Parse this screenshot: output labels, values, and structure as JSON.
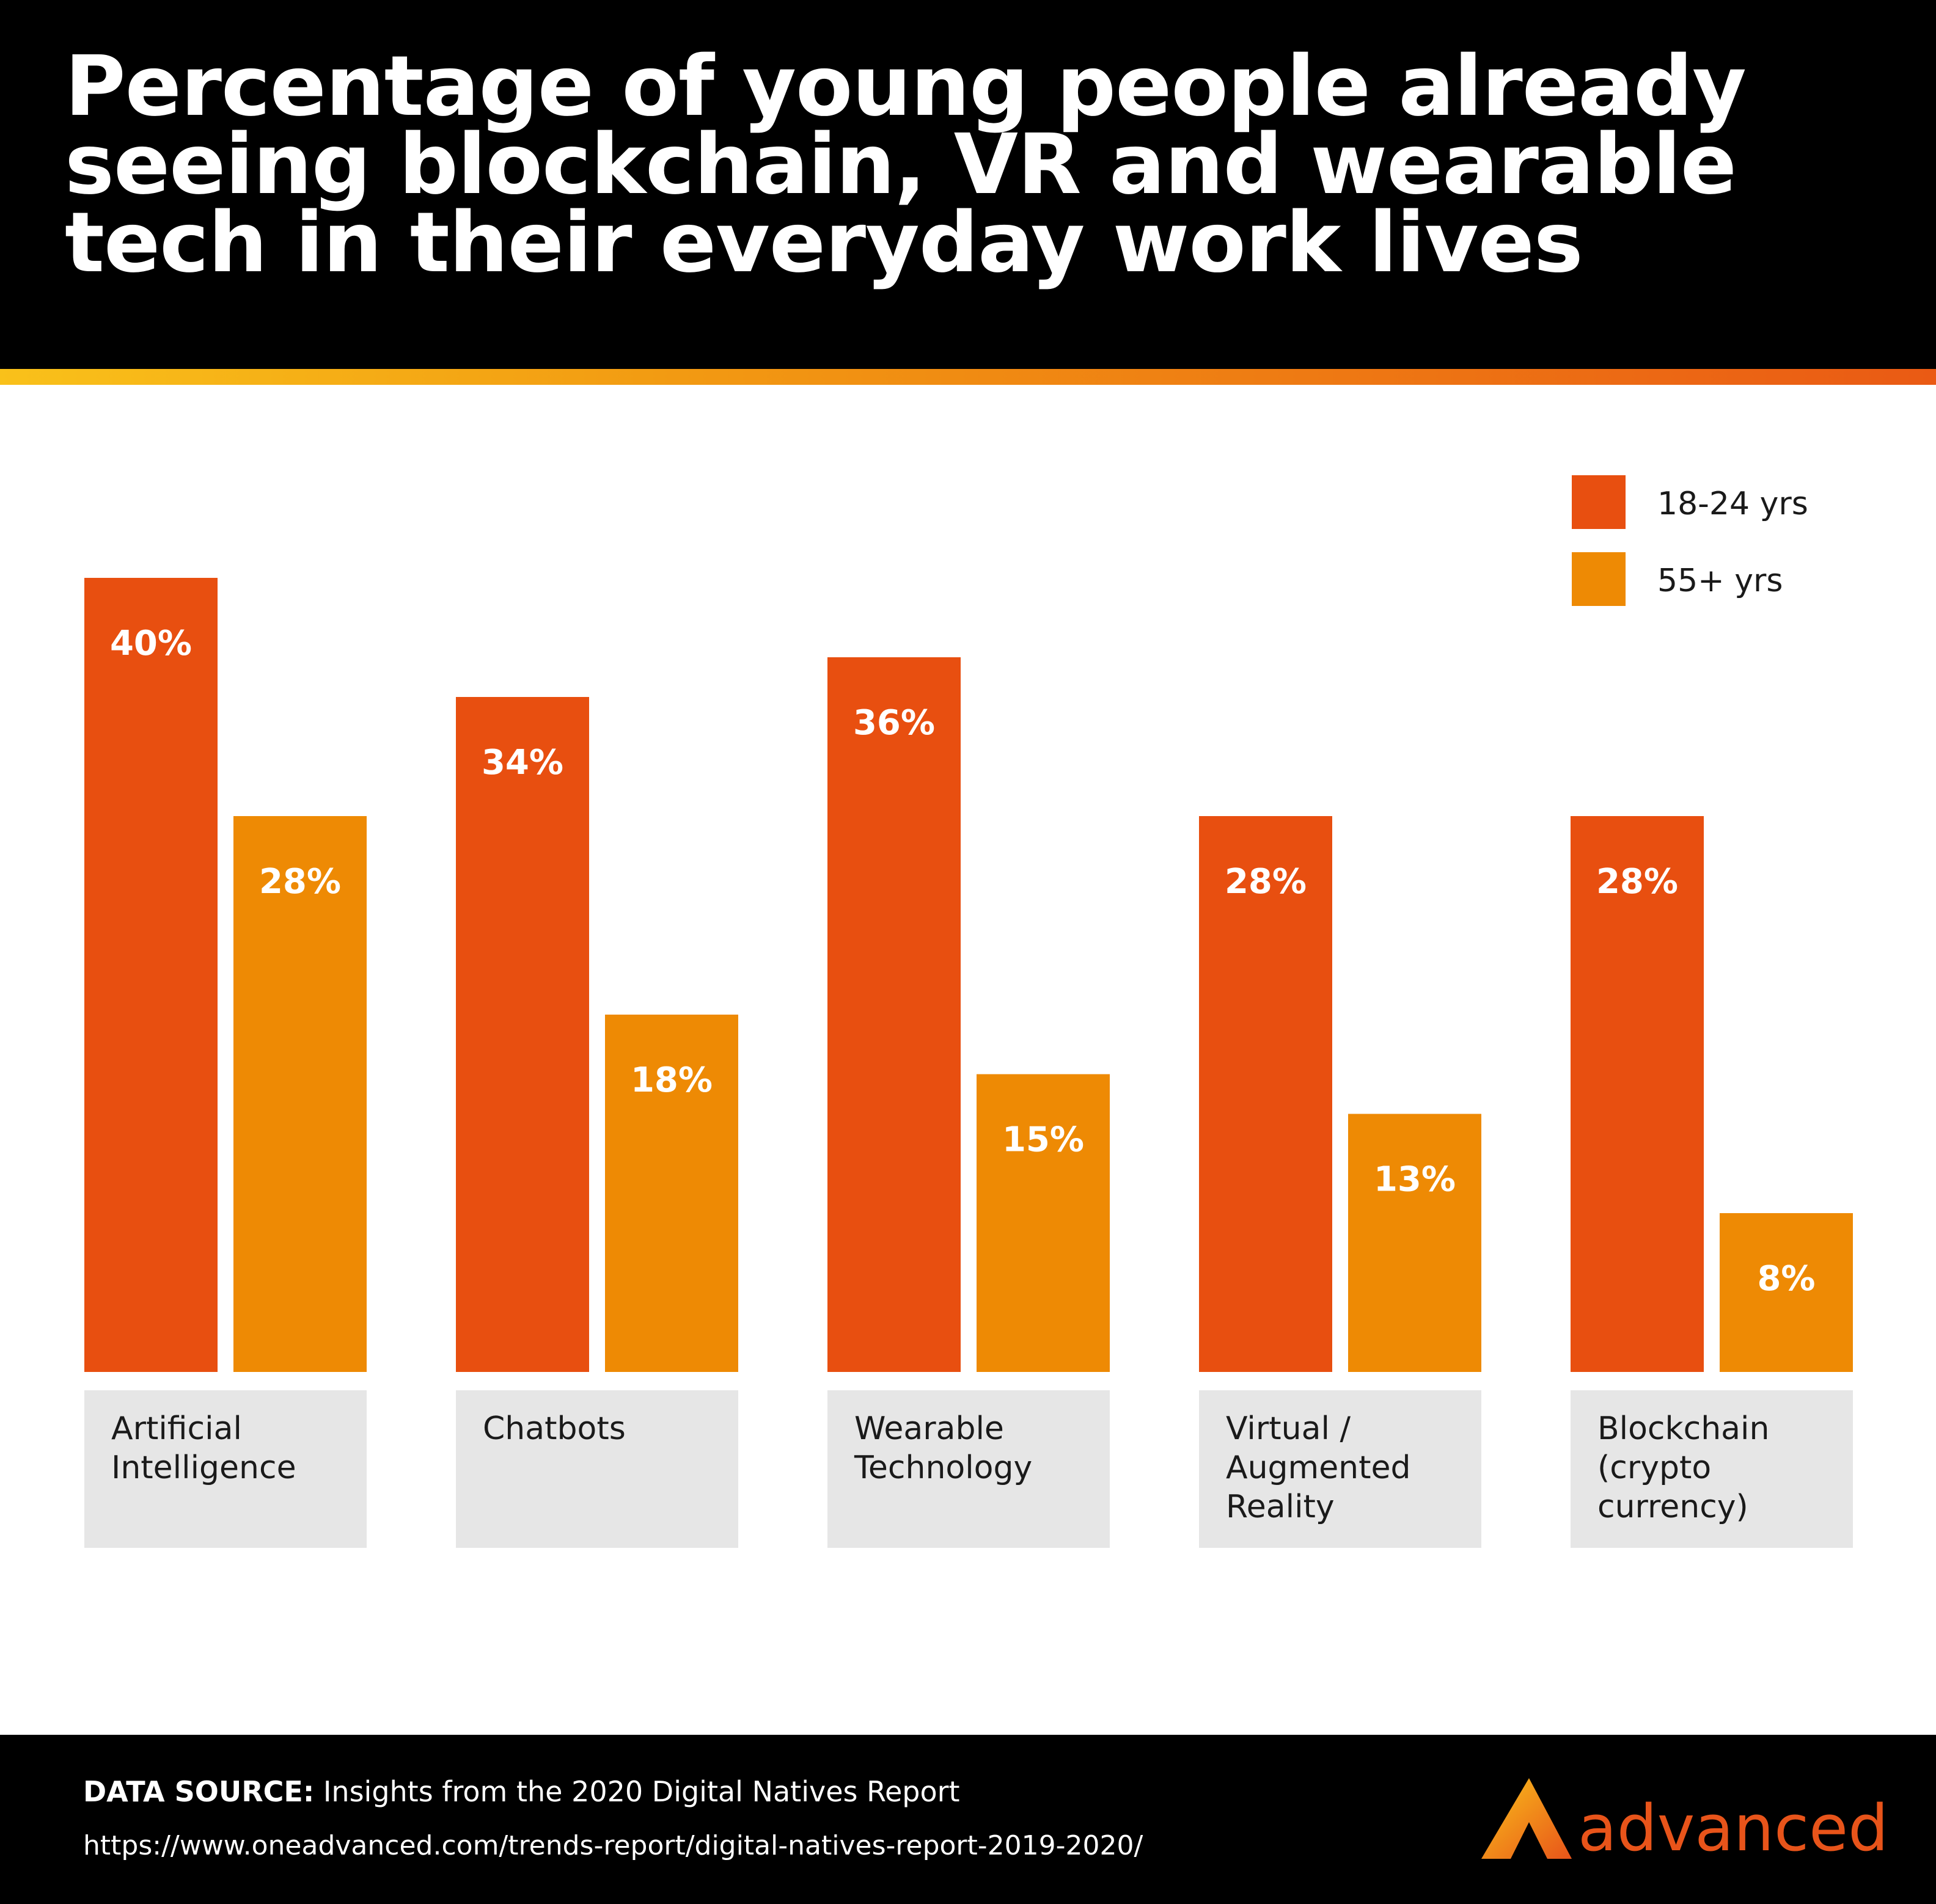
{
  "title": "Percentage of young people already seeing blockchain, VR and wearable tech in their everyday work lives",
  "colors": {
    "series1": "#e84f10",
    "series2": "#ee8a04",
    "category_bg": "#e6e6e6",
    "brand": "#e8541a"
  },
  "chart_data": {
    "type": "bar",
    "categories": [
      [
        "Artificial",
        "Intelligence"
      ],
      [
        "Chatbots"
      ],
      [
        "Wearable",
        "Technology"
      ],
      [
        "Virtual /",
        "Augmented",
        "Reality"
      ],
      [
        "Blockchain",
        "(crypto",
        "currency)"
      ]
    ],
    "series": [
      {
        "name": "18-24 yrs",
        "values": [
          40,
          34,
          36,
          28,
          28
        ],
        "labels": [
          "40%",
          "34%",
          "36%",
          "28%",
          "28%"
        ]
      },
      {
        "name": "55+ yrs",
        "values": [
          28,
          18,
          15,
          13,
          8
        ],
        "labels": [
          "28%",
          "18%",
          "15%",
          "13%",
          "8%"
        ]
      }
    ],
    "ylim": [
      0,
      40
    ],
    "legend": "top-right",
    "grid": false,
    "xlabel": "",
    "ylabel": ""
  },
  "footer": {
    "source_label": "DATA SOURCE:",
    "source_text": " Insights from the 2020 Digital Natives Report",
    "url": "https://www.oneadvanced.com/trends-report/digital-natives-report-2019-2020/",
    "brand_name": "advanced"
  }
}
